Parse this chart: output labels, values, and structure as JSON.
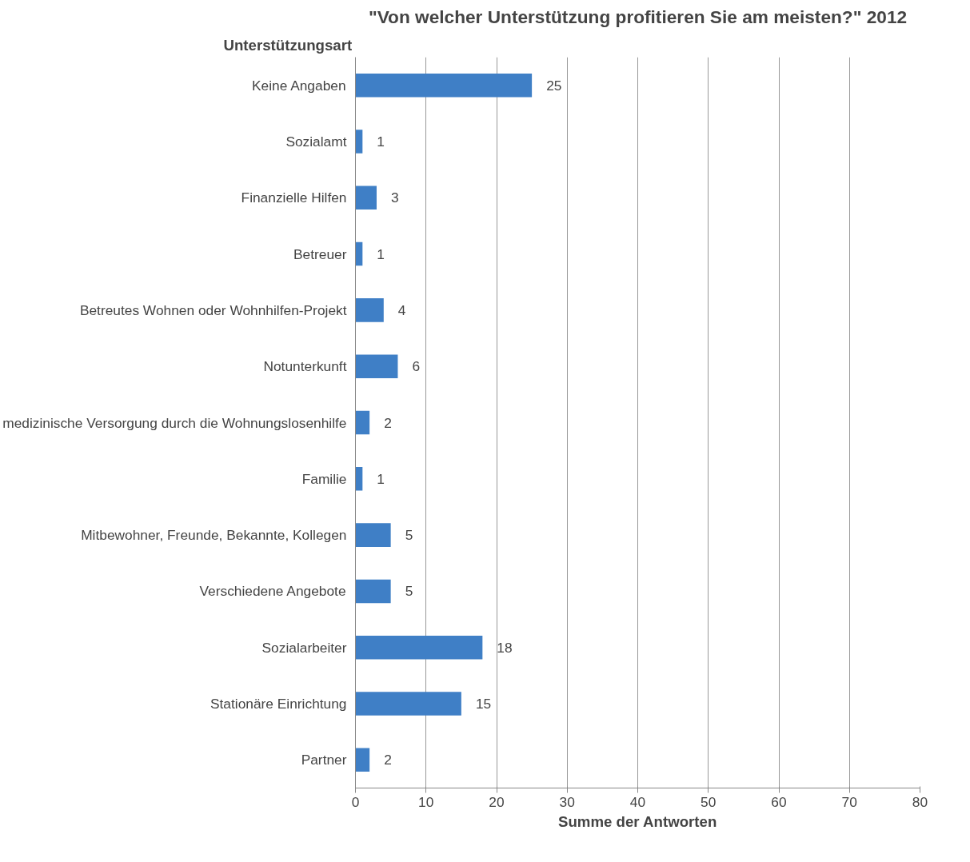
{
  "chart_data": {
    "type": "bar",
    "orientation": "horizontal",
    "title": "\"Von welcher Unterstützung profitieren Sie am meisten?\" 2012",
    "ylabel": "Unterstützungsart",
    "xlabel": "Summe der Antworten",
    "categories": [
      "Keine Angaben",
      "Sozialamt",
      "Finanzielle Hilfen",
      "Betreuer",
      "Betreutes Wohnen oder Wohnhilfen-Projekt",
      "Notunterkunft",
      "medizinische Versorgung durch die Wohnungslosenhilfe",
      "Familie",
      "Mitbewohner, Freunde, Bekannte, Kollegen",
      "Verschiedene Angebote",
      "Sozialarbeiter",
      "Stationäre Einrichtung",
      "Partner"
    ],
    "values": [
      25,
      1,
      3,
      1,
      4,
      6,
      2,
      1,
      5,
      5,
      18,
      15,
      2
    ],
    "color": "#3f7fc6",
    "xlim": [
      0,
      80
    ],
    "xticks": [
      0,
      10,
      20,
      30,
      40,
      50,
      60,
      70,
      80
    ],
    "grid": "x",
    "data_labels": true
  }
}
